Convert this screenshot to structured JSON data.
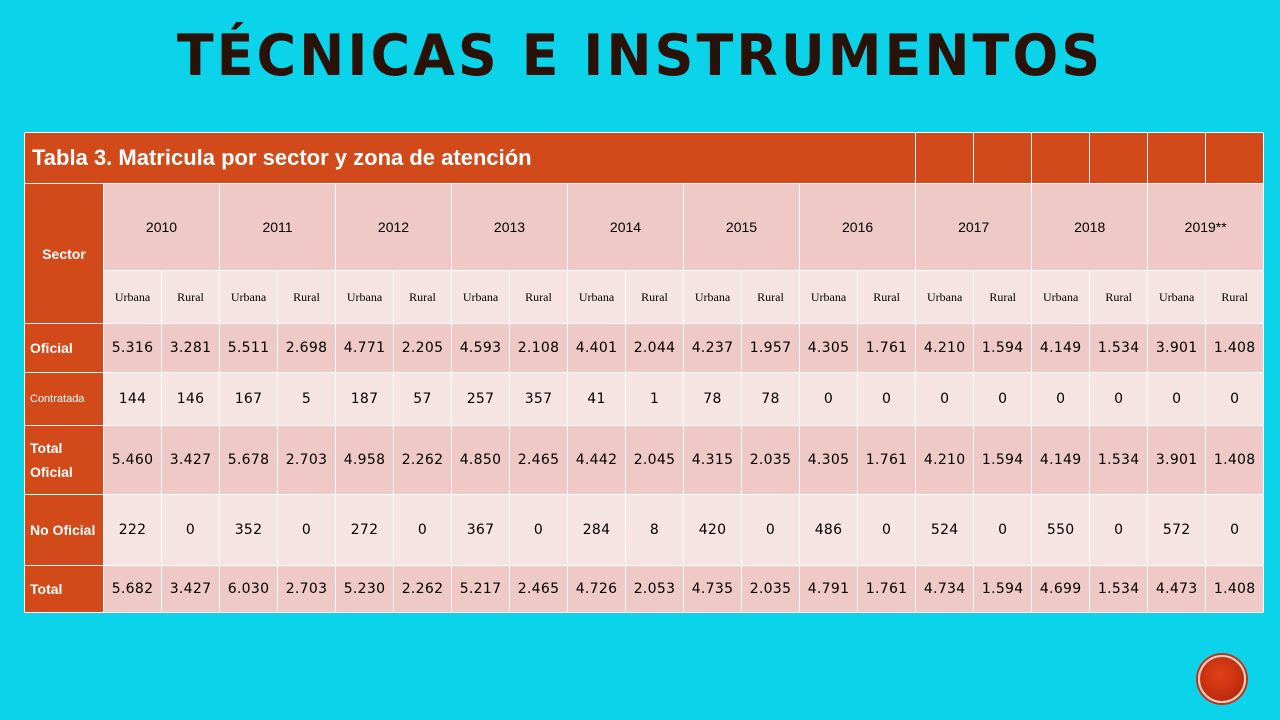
{
  "slide": {
    "title": "TÉCNICAS E INSTRUMENTOS"
  },
  "table": {
    "caption": "Tabla 3. Matricula por sector y zona de atención",
    "sector_header": "Sector",
    "years": [
      "2010",
      "2011",
      "2012",
      "2013",
      "2014",
      "2015",
      "2016",
      "2017",
      "2018",
      "2019**"
    ],
    "zones": [
      "Urbana",
      "Rural"
    ],
    "rows": [
      {
        "label": "Oficial",
        "values": [
          "5.316",
          "3.281",
          "5.511",
          "2.698",
          "4.771",
          "2.205",
          "4.593",
          "2.108",
          "4.401",
          "2.044",
          "4.237",
          "1.957",
          "4.305",
          "1.761",
          "4.210",
          "1.594",
          "4.149",
          "1.534",
          "3.901",
          "1.408"
        ]
      },
      {
        "label": "Contratada",
        "values": [
          "144",
          "146",
          "167",
          "5",
          "187",
          "57",
          "257",
          "357",
          "41",
          "1",
          "78",
          "78",
          "0",
          "0",
          "0",
          "0",
          "0",
          "0",
          "0",
          "0"
        ]
      },
      {
        "label": "Total Oficial",
        "values": [
          "5.460",
          "3.427",
          "5.678",
          "2.703",
          "4.958",
          "2.262",
          "4.850",
          "2.465",
          "4.442",
          "2.045",
          "4.315",
          "2.035",
          "4.305",
          "1.761",
          "4.210",
          "1.594",
          "4.149",
          "1.534",
          "3.901",
          "1.408"
        ]
      },
      {
        "label": "No Oficial",
        "values": [
          "222",
          "0",
          "352",
          "0",
          "272",
          "0",
          "367",
          "0",
          "284",
          "8",
          "420",
          "0",
          "486",
          "0",
          "524",
          "0",
          "550",
          "0",
          "572",
          "0"
        ]
      },
      {
        "label": "Total",
        "values": [
          "5.682",
          "3.427",
          "6.030",
          "2.703",
          "5.230",
          "2.262",
          "5.217",
          "2.465",
          "4.726",
          "2.053",
          "4.735",
          "2.035",
          "4.791",
          "1.761",
          "4.734",
          "1.594",
          "4.699",
          "1.534",
          "4.473",
          "1.408"
        ]
      }
    ]
  },
  "colors": {
    "background": "#0bd3ea",
    "header": "#d24a1a",
    "row_dark": "#eec9c5",
    "row_light": "#f6e4e2",
    "title": "#2b1208"
  },
  "icons": {
    "nav": "next-slide-button"
  }
}
